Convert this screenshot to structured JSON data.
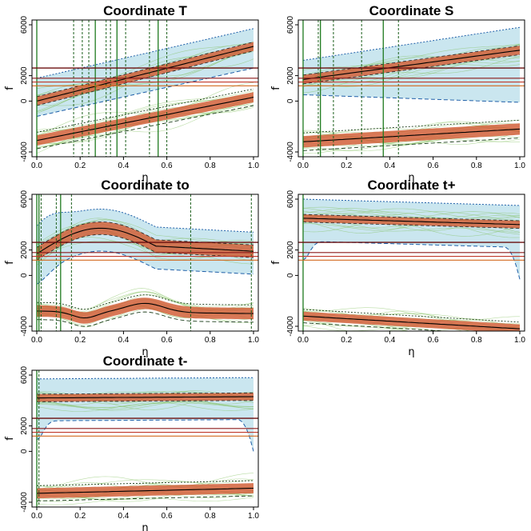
{
  "chart_data": [
    {
      "type": "line",
      "title": "Coordinate T",
      "xlabel": "η",
      "ylabel": "f",
      "xlim": [
        0,
        1
      ],
      "ylim": [
        -4000,
        6000
      ],
      "x_ticks": [
        "0.0",
        "0.2",
        "0.4",
        "0.6",
        "0.8",
        "1.0"
      ],
      "y_ticks": [
        "-4000",
        "0",
        "2000",
        "6000"
      ],
      "upper_band": {
        "median_start": 0,
        "median_end": 4300,
        "inner_half_width": 350,
        "outer_low_start": -1200,
        "outer_low_end": 2600,
        "outer_high_start": 1800,
        "outer_high_end": 5700
      },
      "lower_band": {
        "median_start": -3100,
        "median_end": 300,
        "inner_half_width": 400,
        "outer_half_width": 650
      },
      "thresholds": [
        2600,
        1800,
        1500,
        1200
      ],
      "vlines_solid": [
        0.0,
        0.27,
        0.37,
        0.56
      ],
      "vlines_dotted": [
        0.17,
        0.21,
        0.24,
        0.32,
        0.34,
        0.41,
        0.52,
        0.6
      ]
    },
    {
      "type": "line",
      "title": "Coordinate S",
      "xlabel": "η",
      "ylabel": "f",
      "xlim": [
        0,
        1
      ],
      "ylim": [
        -4000,
        6000
      ],
      "x_ticks": [
        "0.0",
        "0.2",
        "0.4",
        "0.6",
        "0.8",
        "1.0"
      ],
      "y_ticks": [
        "-4000",
        "0",
        "2000",
        "6000"
      ],
      "upper_band": {
        "median_start": 1700,
        "median_end": 4000,
        "inner_half_width": 350,
        "outer_low_start": 500,
        "outer_low_end": -100,
        "outer_high_start": 3200,
        "outer_high_end": 5800
      },
      "lower_band": {
        "median_start": -3200,
        "median_end": -2200,
        "inner_half_width": 450,
        "outer_half_width": 700
      },
      "thresholds": [
        2600,
        1800,
        1500,
        1200
      ],
      "vlines_solid": [
        0.0,
        0.08,
        0.37
      ],
      "vlines_dotted": [
        0.07,
        0.14,
        0.27,
        0.44
      ]
    },
    {
      "type": "line",
      "title": "Coordinate to",
      "xlabel": "η",
      "ylabel": "f",
      "xlim": [
        0,
        1
      ],
      "ylim": [
        -4000,
        6000
      ],
      "x_ticks": [
        "0.0",
        "0.2",
        "0.4",
        "0.6",
        "0.8",
        "1.0"
      ],
      "y_ticks": [
        "-4000",
        "0",
        "2000",
        "6000"
      ],
      "upper_band": {
        "median_start": 1700,
        "median_end": 2800,
        "inner_half_width": 500
      },
      "lower_band": {
        "median_start": -2800,
        "median_end": -3000,
        "inner_half_width": 450
      },
      "thresholds": [
        2600,
        1800,
        1500,
        1200
      ],
      "vlines_solid": [
        0.0,
        0.01,
        0.11
      ],
      "vlines_dotted": [
        0.02,
        0.09,
        0.16,
        0.71,
        0.99
      ]
    },
    {
      "type": "line",
      "title": "Coordinate t+",
      "xlabel": "η",
      "ylabel": "f",
      "xlim": [
        0,
        1
      ],
      "ylim": [
        -4000,
        6000
      ],
      "x_ticks": [
        "0.0",
        "0.2",
        "0.4",
        "0.6",
        "0.8",
        "1.0"
      ],
      "y_ticks": [
        "-4000",
        "0",
        "2000",
        "6000"
      ],
      "upper_band": {
        "median_start": 4500,
        "median_end": 4000,
        "inner_half_width": 300
      },
      "lower_band": {
        "median_start": -3200,
        "median_end": -4200,
        "inner_half_width": 350
      },
      "thresholds": [
        2600,
        1800,
        1500,
        1200
      ],
      "vlines_solid": [
        0.0
      ],
      "vlines_dotted": []
    },
    {
      "type": "line",
      "title": "Coordinate t-",
      "xlabel": "η",
      "ylabel": "f",
      "xlim": [
        0,
        1
      ],
      "ylim": [
        -4000,
        6000
      ],
      "x_ticks": [
        "0.0",
        "0.2",
        "0.4",
        "0.6",
        "0.8",
        "1.0"
      ],
      "y_ticks": [
        "-4000",
        "0",
        "2000",
        "6000"
      ],
      "upper_band": {
        "median_start": 4200,
        "median_end": 4300,
        "inner_half_width": 300
      },
      "lower_band": {
        "median_start": -3300,
        "median_end": -2900,
        "inner_half_width": 400
      },
      "thresholds": [
        2600,
        1800,
        1500,
        1200
      ],
      "vlines_solid": [
        0.0
      ],
      "vlines_dotted": [
        0.01
      ]
    }
  ]
}
